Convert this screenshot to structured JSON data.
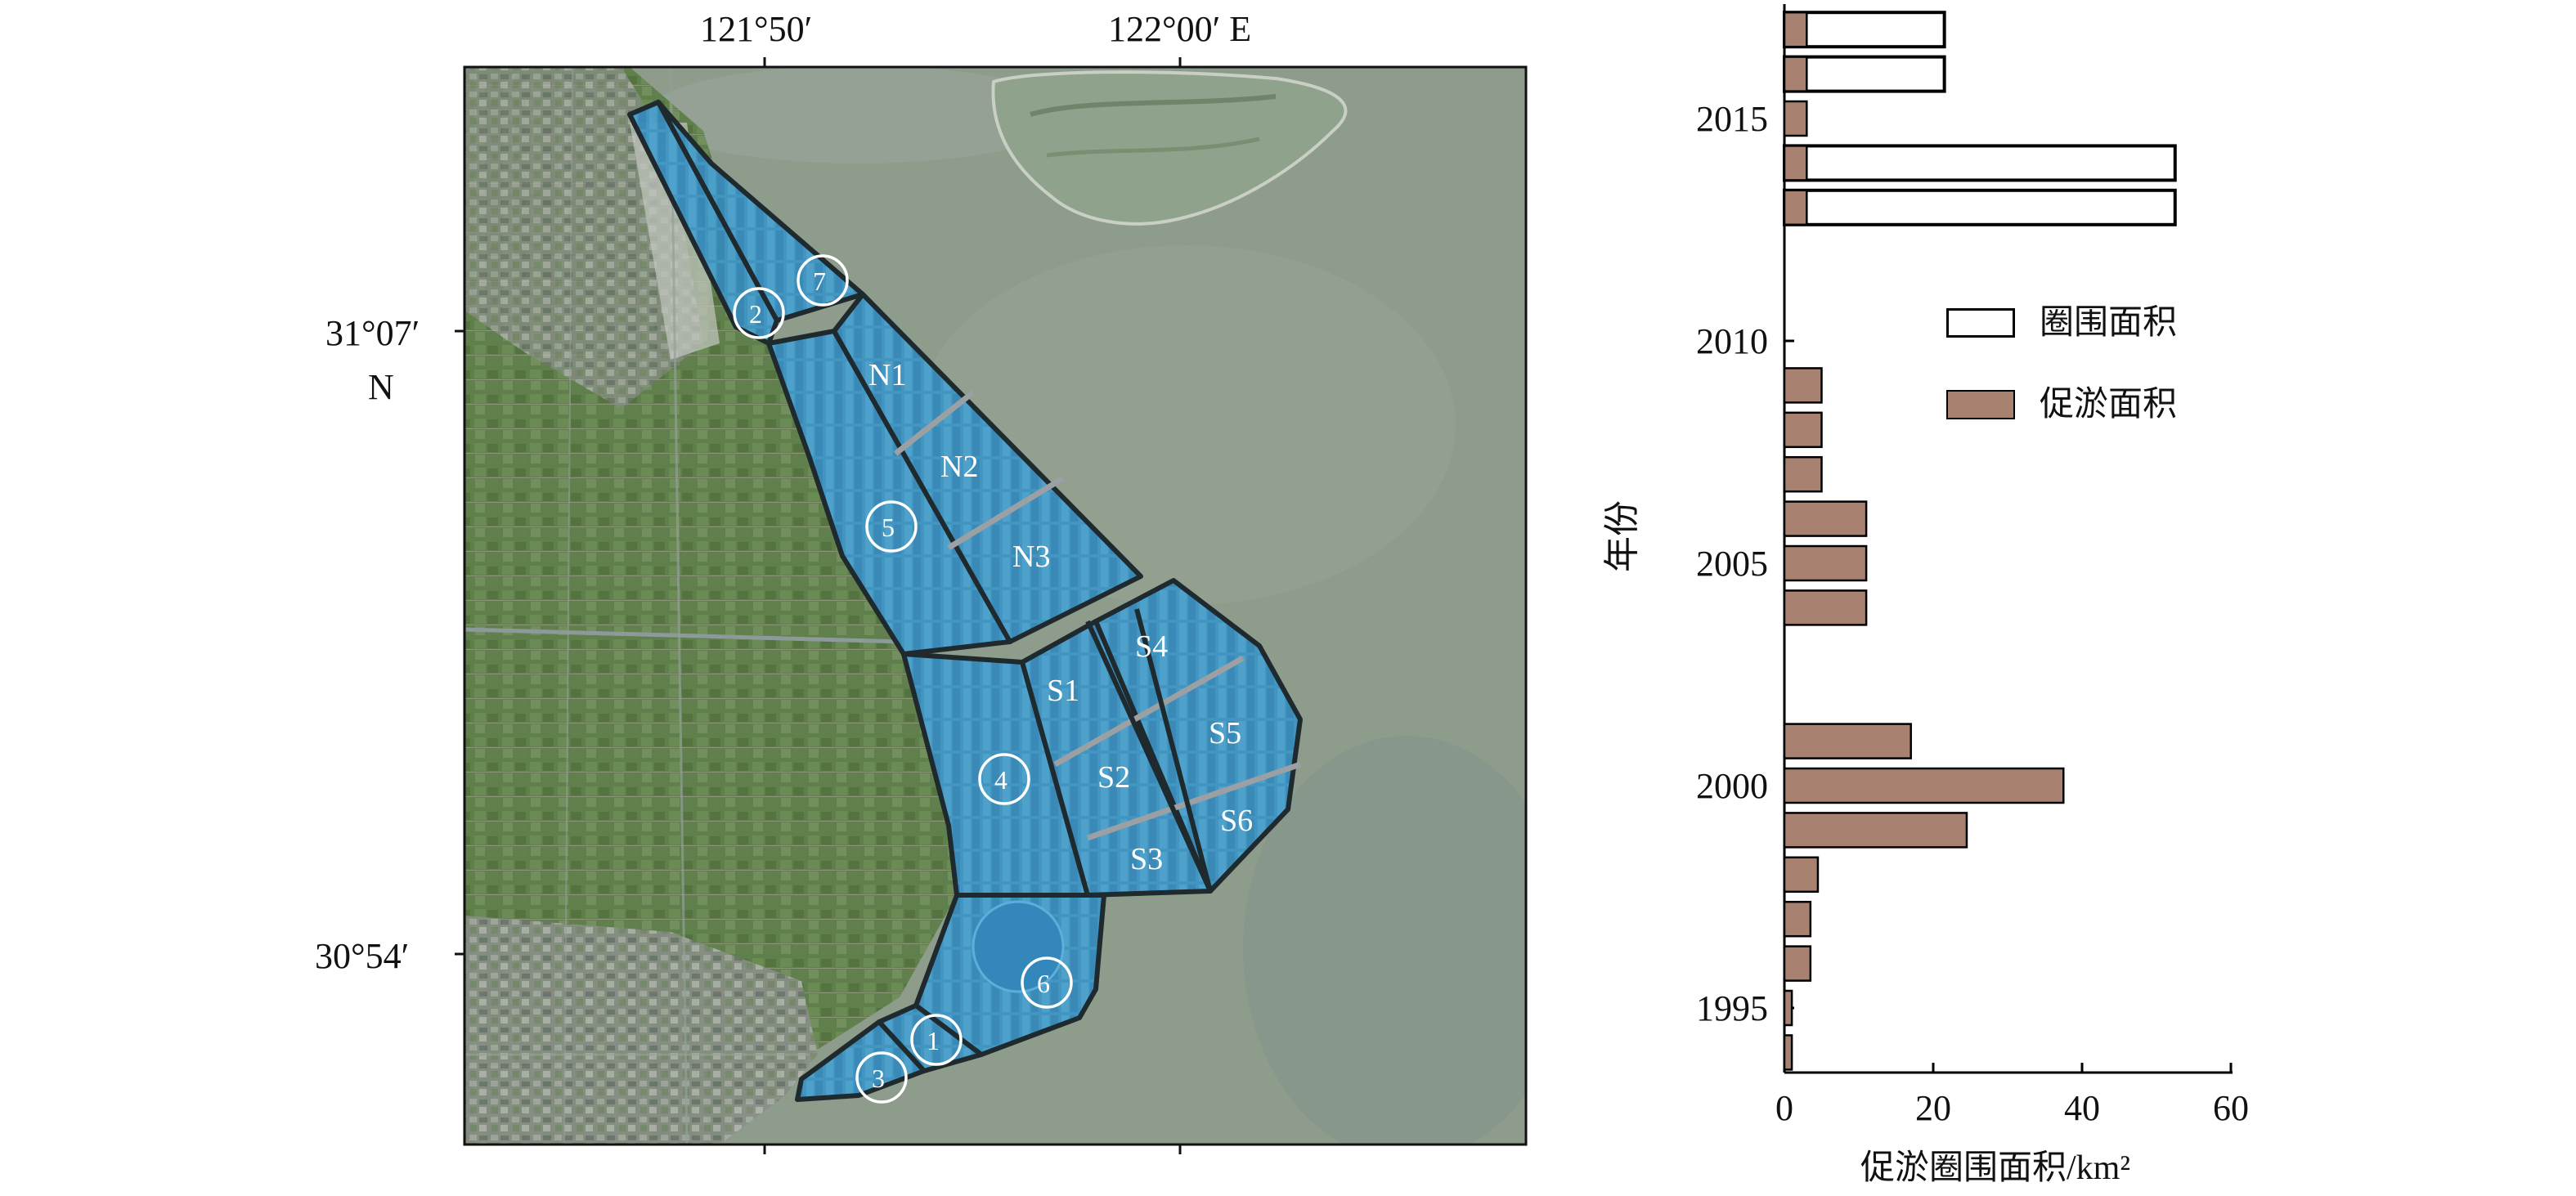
{
  "map": {
    "coord_labels": {
      "lon_1": "121°50′",
      "lon_2": "122°00′ E",
      "lat_1": "31°07′",
      "lat_1_hemi": "N",
      "lat_2": "30°54′"
    },
    "zones": {
      "n1": "N1",
      "n2": "N2",
      "n3": "N3",
      "s1": "S1",
      "s2": "S2",
      "s3": "S3",
      "s4": "S4",
      "s5": "S5",
      "s6": "S6",
      "c1": "1",
      "c2": "2",
      "c3": "3",
      "c4": "4",
      "c5": "5",
      "c6": "6",
      "c7": "7"
    },
    "colors": {
      "land": "#5b7a4a",
      "water": "#8c9c8e",
      "zone_fill": "#3a9cd2",
      "island": "#8da18a"
    }
  },
  "chart_data": {
    "type": "bar",
    "orientation": "horizontal",
    "xlabel": "促淤圈围面积/km²",
    "ylabel": "年份",
    "xlim": [
      0,
      60
    ],
    "ylim": [
      1993.5,
      2017.5
    ],
    "x_ticks": [
      0,
      20,
      40,
      60
    ],
    "y_ticks": [
      1995,
      2000,
      2005,
      2010,
      2015
    ],
    "legend_position": "right-middle",
    "series": [
      {
        "name": "圈围面积",
        "color": "#ffffff",
        "stroke": "#000000",
        "points": [
          {
            "year": 2013,
            "value": 52.5
          },
          {
            "year": 2014,
            "value": 52.5
          },
          {
            "year": 2016,
            "value": 21.5
          },
          {
            "year": 2017,
            "value": 21.5
          }
        ]
      },
      {
        "name": "促淤面积",
        "color": "#a98170",
        "stroke": "#000000",
        "points": [
          {
            "year": 1994,
            "value": 1.0
          },
          {
            "year": 1995,
            "value": 1.0
          },
          {
            "year": 1996,
            "value": 3.5
          },
          {
            "year": 1997,
            "value": 3.5
          },
          {
            "year": 1998,
            "value": 4.5
          },
          {
            "year": 1999,
            "value": 24.5
          },
          {
            "year": 2000,
            "value": 37.5
          },
          {
            "year": 2001,
            "value": 17.0
          },
          {
            "year": 2004,
            "value": 11.0
          },
          {
            "year": 2005,
            "value": 11.0
          },
          {
            "year": 2006,
            "value": 11.0
          },
          {
            "year": 2007,
            "value": 5.0
          },
          {
            "year": 2008,
            "value": 5.0
          },
          {
            "year": 2009,
            "value": 5.0
          },
          {
            "year": 2013,
            "value": 3.0
          },
          {
            "year": 2014,
            "value": 3.0
          },
          {
            "year": 2015,
            "value": 3.0
          },
          {
            "year": 2016,
            "value": 3.0
          },
          {
            "year": 2017,
            "value": 3.0
          }
        ]
      }
    ]
  }
}
